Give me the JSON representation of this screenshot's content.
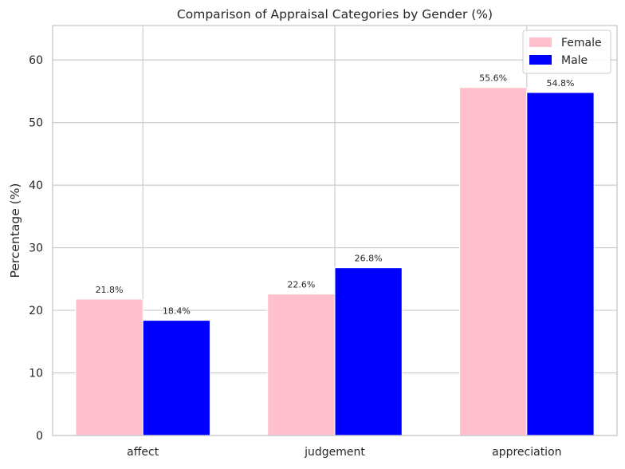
{
  "chart_data": {
    "type": "bar",
    "title": "Comparison of Appraisal Categories by Gender (%)",
    "xlabel": "",
    "ylabel": "Percentage (%)",
    "categories": [
      "affect",
      "judgement",
      "appreciation"
    ],
    "series": [
      {
        "name": "Female",
        "color": "#ffc0cb",
        "values": [
          21.8,
          22.6,
          55.6
        ],
        "labels": [
          "21.8%",
          "22.6%",
          "55.6%"
        ]
      },
      {
        "name": "Male",
        "color": "#0000ff",
        "values": [
          18.4,
          26.8,
          54.8
        ],
        "labels": [
          "18.4%",
          "26.8%",
          "54.8%"
        ]
      }
    ],
    "ylim": [
      0,
      65.5
    ],
    "yticks": [
      0,
      10,
      20,
      30,
      40,
      50,
      60
    ],
    "ytick_labels": [
      "0",
      "10",
      "20",
      "30",
      "40",
      "50",
      "60"
    ],
    "grid": true,
    "legend_position": "top-right"
  }
}
